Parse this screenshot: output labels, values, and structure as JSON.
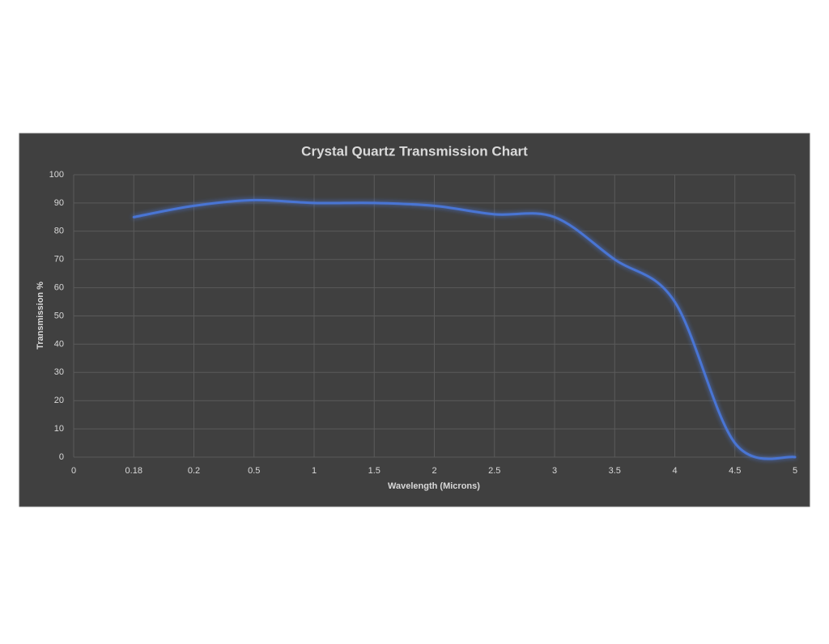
{
  "chart_data": {
    "type": "line",
    "title": "Crystal Quartz Transmission Chart",
    "x_label": "Wavelength (Microns)",
    "y_label": "Transmission %",
    "categories": [
      "0",
      "0.18",
      "0.2",
      "0.5",
      "1",
      "1.5",
      "2",
      "2.5",
      "3",
      "3.5",
      "4",
      "4.5",
      "5"
    ],
    "values": [
      null,
      85,
      89,
      91,
      90,
      90,
      89,
      86,
      85,
      70,
      55,
      5,
      0
    ],
    "color": "#4a74d4",
    "ylim": [
      0,
      100
    ],
    "yticks": [
      0,
      10,
      20,
      30,
      40,
      50,
      60,
      70,
      80,
      90,
      100
    ],
    "grid": true
  }
}
